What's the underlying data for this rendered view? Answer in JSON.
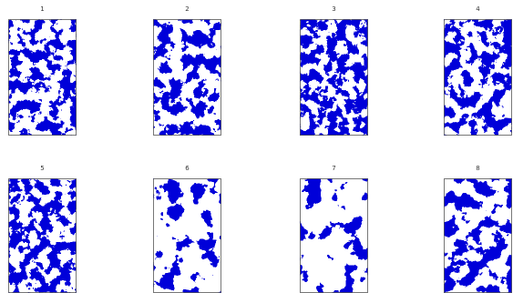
{
  "panels": [
    {
      "title": "1"
    },
    {
      "title": "2"
    },
    {
      "title": "3"
    },
    {
      "title": "4"
    },
    {
      "title": "5"
    },
    {
      "title": "6"
    },
    {
      "title": "7"
    },
    {
      "title": "8"
    }
  ]
}
